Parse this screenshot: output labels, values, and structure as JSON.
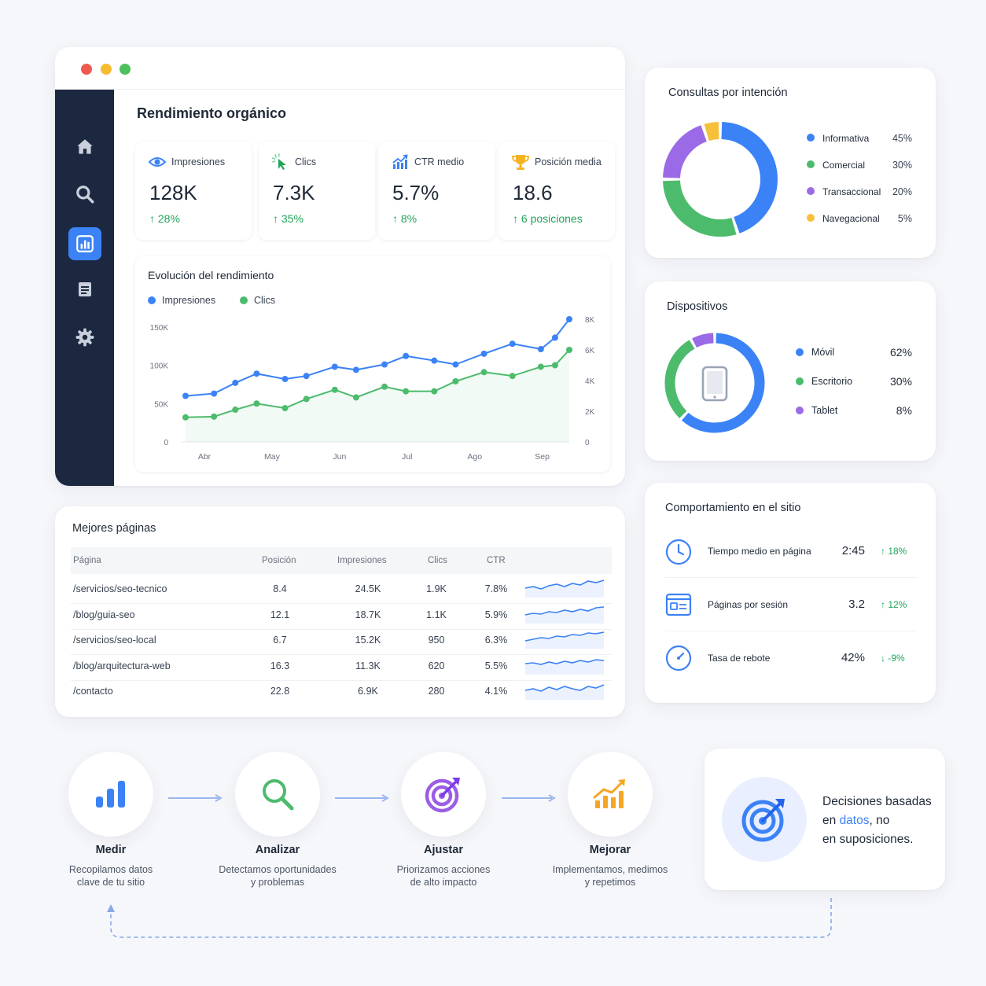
{
  "window": {
    "title": "Rendimiento orgánico",
    "sidebar": [
      "home-icon",
      "search-icon",
      "chart-icon",
      "document-icon",
      "gear-icon"
    ],
    "active_item": "chart-icon"
  },
  "kpis": [
    {
      "label": "Impresiones",
      "value": "128K",
      "change": "↑ 28%",
      "icon": "eye-icon"
    },
    {
      "label": "Clics",
      "value": "7.3K",
      "change": "↑ 35%",
      "icon": "cursor-click-icon"
    },
    {
      "label": "CTR medio",
      "value": "5.7%",
      "change": "↑ 8%",
      "icon": "chart-growth-icon"
    },
    {
      "label": "Posición media",
      "value": "18.6",
      "change": "↑ 6 posiciones",
      "icon": "trophy-icon"
    }
  ],
  "chart": {
    "title": "Evolución del rendimiento",
    "legend": [
      {
        "name": "Impresiones",
        "color": "#3b82f6"
      },
      {
        "name": "Clics",
        "color": "#4cbb6c"
      }
    ],
    "left_ticks": [
      "150K",
      "100K",
      "50K",
      "0"
    ],
    "right_ticks": [
      "8K",
      "6K",
      "4K",
      "2K",
      "0"
    ],
    "x_ticks": [
      "Abr",
      "May",
      "Jun",
      "Jul",
      "Ago",
      "Sep"
    ]
  },
  "chart_data": {
    "type": "line",
    "title": "Evolución del rendimiento",
    "x_labels": [
      "Abr",
      "May",
      "Jun",
      "Jul",
      "Ago",
      "Sep"
    ],
    "left_axis": {
      "ylim": [
        0,
        160000
      ],
      "ticks": [
        0,
        50000,
        100000,
        150000
      ]
    },
    "right_axis": {
      "ylim": [
        0,
        8000
      ],
      "ticks": [
        0,
        2000,
        4000,
        6000,
        8000
      ]
    },
    "series": [
      {
        "name": "Impresiones",
        "axis": "left",
        "color": "#3b82f6",
        "x": [
          0,
          0.4,
          0.7,
          1.0,
          1.4,
          1.7,
          2.1,
          2.4,
          2.8,
          3.1,
          3.5,
          3.8,
          4.2,
          4.6,
          5.0,
          5.2,
          5.4
        ],
        "values": [
          60000,
          63000,
          77000,
          89000,
          82000,
          86000,
          98000,
          94000,
          101000,
          112000,
          106000,
          101000,
          115000,
          128000,
          121000,
          136000,
          160000
        ]
      },
      {
        "name": "Clics",
        "axis": "right",
        "color": "#4cbb6c",
        "x": [
          0,
          0.4,
          0.7,
          1.0,
          1.4,
          1.7,
          2.1,
          2.4,
          2.8,
          3.1,
          3.5,
          3.8,
          4.2,
          4.6,
          5.0,
          5.2,
          5.4
        ],
        "values": [
          1600,
          1650,
          2100,
          2500,
          2200,
          2800,
          3400,
          2900,
          3600,
          3300,
          3300,
          3950,
          4550,
          4300,
          4900,
          5000,
          6000
        ]
      }
    ]
  },
  "pages": {
    "title": "Mejores páginas",
    "columns": [
      "Página",
      "Posición",
      "Impresiones",
      "Clics",
      "CTR"
    ],
    "rows": [
      {
        "page": "/servicios/seo-tecnico",
        "pos": "8.4",
        "imp": "24.5K",
        "clics": "1.9K",
        "ctr": "7.8%"
      },
      {
        "page": "/blog/guia-seo",
        "pos": "12.1",
        "imp": "18.7K",
        "clics": "1.1K",
        "ctr": "5.9%"
      },
      {
        "page": "/servicios/seo-local",
        "pos": "6.7",
        "imp": "15.2K",
        "clics": "950",
        "ctr": "6.3%"
      },
      {
        "page": "/blog/arquitectura-web",
        "pos": "16.3",
        "imp": "11.3K",
        "clics": "620",
        "ctr": "5.5%"
      },
      {
        "page": "/contacto",
        "pos": "22.8",
        "imp": "6.9K",
        "clics": "280",
        "ctr": "4.1%"
      }
    ]
  },
  "intent": {
    "title": "Consultas por intención",
    "items": [
      {
        "name": "Informativa",
        "pct": "45%",
        "value": 45,
        "color": "#3b82f6"
      },
      {
        "name": "Comercial",
        "pct": "30%",
        "value": 30,
        "color": "#4cbb6c"
      },
      {
        "name": "Transaccional",
        "pct": "20%",
        "value": 20,
        "color": "#9b6ae6"
      },
      {
        "name": "Navegacional",
        "pct": "5%",
        "value": 5,
        "color": "#f6c03b"
      }
    ]
  },
  "devices": {
    "title": "Dispositivos",
    "items": [
      {
        "name": "Móvil",
        "pct": "62%",
        "value": 62,
        "color": "#3b82f6"
      },
      {
        "name": "Escritorio",
        "pct": "30%",
        "value": 30,
        "color": "#4cbb6c"
      },
      {
        "name": "Tablet",
        "pct": "8%",
        "value": 8,
        "color": "#9b6ae6"
      }
    ]
  },
  "behavior": {
    "title": "Comportamiento en el sitio",
    "items": [
      {
        "label": "Tiempo medio en página",
        "value": "2:45",
        "change": "↑ 18%",
        "icon": "clock-icon",
        "color": "#22a35a"
      },
      {
        "label": "Páginas por sesión",
        "value": "3.2",
        "change": "↑ 12%",
        "icon": "pages-window-icon",
        "color": "#22a35a"
      },
      {
        "label": "Tasa de rebote",
        "value": "42%",
        "change": "↓ -9%",
        "icon": "gauge-icon",
        "color": "#22a35a"
      }
    ]
  },
  "process": [
    {
      "name": "Medir",
      "desc1": "Recopilamos datos",
      "desc2": "clave de tu sitio",
      "icon": "bar-chart-icon"
    },
    {
      "name": "Analizar",
      "desc1": "Detectamos oportunidades",
      "desc2": "y problemas",
      "icon": "magnifier-icon"
    },
    {
      "name": "Ajustar",
      "desc1": "Priorizamos acciones",
      "desc2": "de alto impacto",
      "icon": "target-icon"
    },
    {
      "name": "Mejorar",
      "desc1": "Implementamos, medimos",
      "desc2": "y repetimos",
      "icon": "growth-chart-icon"
    }
  ],
  "decision": {
    "line1": "Decisiones basadas",
    "pre": "en ",
    "highlight": "datos",
    "post": ", no",
    "line3": "en suposiciones."
  }
}
